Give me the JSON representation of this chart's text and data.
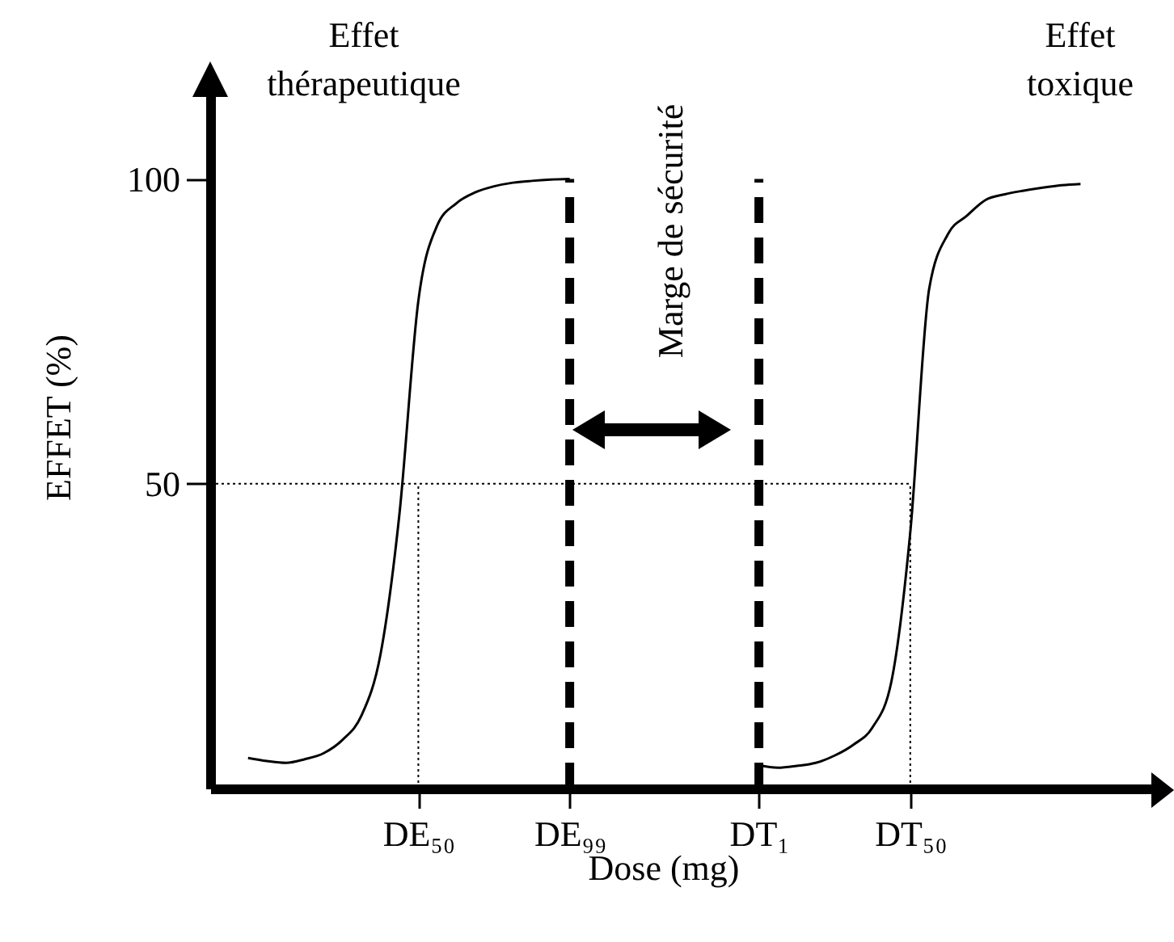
{
  "chart_data": {
    "type": "line",
    "xlabel": "Dose (mg)",
    "ylabel": "EFFET (%)",
    "annotations": [
      "Effet thérapeutique",
      "Effet toxique",
      "Marge de sécurité"
    ],
    "categories": [
      null,
      null,
      null,
      null,
      null,
      null,
      null,
      null,
      null,
      null,
      null,
      "DE₅₀",
      null,
      null,
      null,
      null,
      null,
      null,
      null,
      "DE₉₉",
      null,
      null,
      null,
      null,
      null,
      null,
      null,
      null,
      null,
      "DT₁",
      null,
      null,
      null,
      null,
      null,
      null,
      null,
      "DT₅₀",
      null,
      null,
      null,
      null,
      null,
      null,
      null,
      null,
      null,
      null,
      null,
      null,
      null
    ],
    "ylim": [
      0,
      114
    ],
    "yticks": [
      50,
      100
    ],
    "grid": false,
    "series": [
      {
        "color": "#000000",
        "values": [
          null,
          null,
          5.0,
          4.5,
          4.2,
          4.8,
          5.8,
          8.0,
          12,
          22,
          45,
          80,
          92.4,
          96,
          97.8,
          98.8,
          99.4,
          99.7,
          99.9,
          100,
          null,
          null,
          null,
          null,
          null,
          null,
          null,
          null,
          null,
          null,
          null,
          null,
          null,
          null,
          null,
          null,
          null,
          null,
          null,
          null,
          null,
          null,
          null,
          null,
          null,
          null,
          null,
          null,
          null,
          null,
          null
        ]
      },
      {
        "color": "#000000",
        "values": [
          null,
          null,
          null,
          null,
          null,
          null,
          null,
          null,
          null,
          null,
          null,
          null,
          null,
          null,
          null,
          null,
          null,
          null,
          null,
          null,
          null,
          null,
          null,
          null,
          null,
          null,
          null,
          null,
          null,
          3.8,
          3.4,
          3.7,
          4.2,
          5.4,
          7.2,
          10,
          17.5,
          42,
          82,
          91,
          94,
          96.6,
          97.5,
          98.1,
          98.6,
          99,
          99.2,
          null,
          null,
          null,
          null
        ]
      }
    ],
    "ref_lines": [
      {
        "axis": "x",
        "value": "DE₅₀",
        "line_style": "dotted",
        "color": "#000000"
      },
      {
        "axis": "x",
        "value": "DT₅₀",
        "line_style": "dotted",
        "color": "#000000"
      },
      {
        "axis": "y",
        "value": 50,
        "line_style": "dotted",
        "color": "#000000"
      },
      {
        "axis": "x",
        "value": "DE₉₉",
        "line_style": "dashed",
        "color": "#000000"
      },
      {
        "axis": "x",
        "value": "DT₁",
        "line_style": "dashed",
        "color": "#000000"
      }
    ]
  }
}
